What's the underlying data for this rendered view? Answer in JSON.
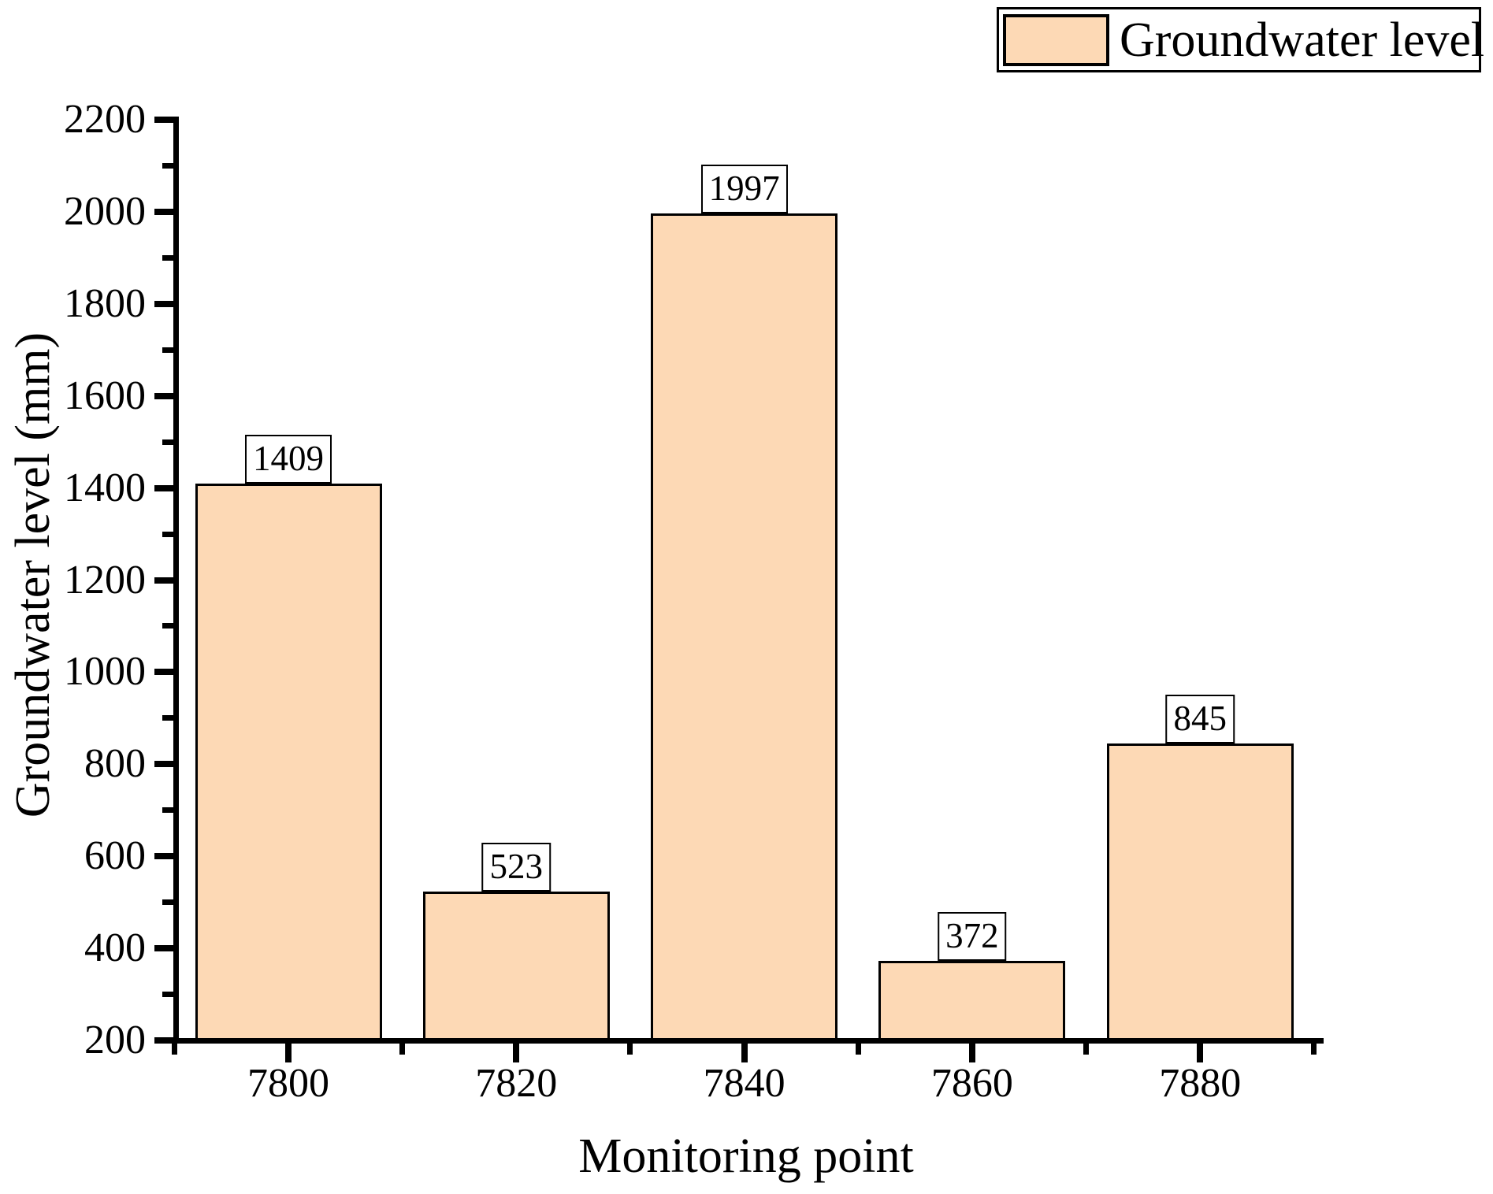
{
  "chart_data": {
    "type": "bar",
    "xlabel": "Monitoring point",
    "ylabel": "Groundwater level (mm)",
    "legend": {
      "label": "Groundwater level",
      "position": "top-right"
    },
    "categories": [
      7800,
      7820,
      7840,
      7860,
      7880
    ],
    "series": [
      {
        "name": "Groundwater level",
        "values": [
          1409,
          523,
          1997,
          372,
          845
        ]
      }
    ],
    "value_labels": [
      "1409",
      "523",
      "1997",
      "372",
      "845"
    ],
    "ylim": [
      200,
      2200
    ],
    "xlim": [
      7790,
      7891
    ],
    "y_major_ticks": [
      200,
      400,
      600,
      800,
      1000,
      1200,
      1400,
      1600,
      1800,
      2000,
      2200
    ],
    "y_minor_ticks": [
      300,
      500,
      700,
      900,
      1100,
      1300,
      1500,
      1700,
      1900,
      2100
    ],
    "x_major_ticks": [
      7800,
      7820,
      7840,
      7860,
      7880
    ],
    "x_minor_ticks": [
      7790,
      7810,
      7830,
      7850,
      7870,
      7890
    ],
    "bar_color": "#FDD9B5",
    "bar_edge_color": "#000000",
    "axis_color": "#000000",
    "background": "#FFFFFF",
    "grid": false,
    "tick_direction": "out"
  }
}
